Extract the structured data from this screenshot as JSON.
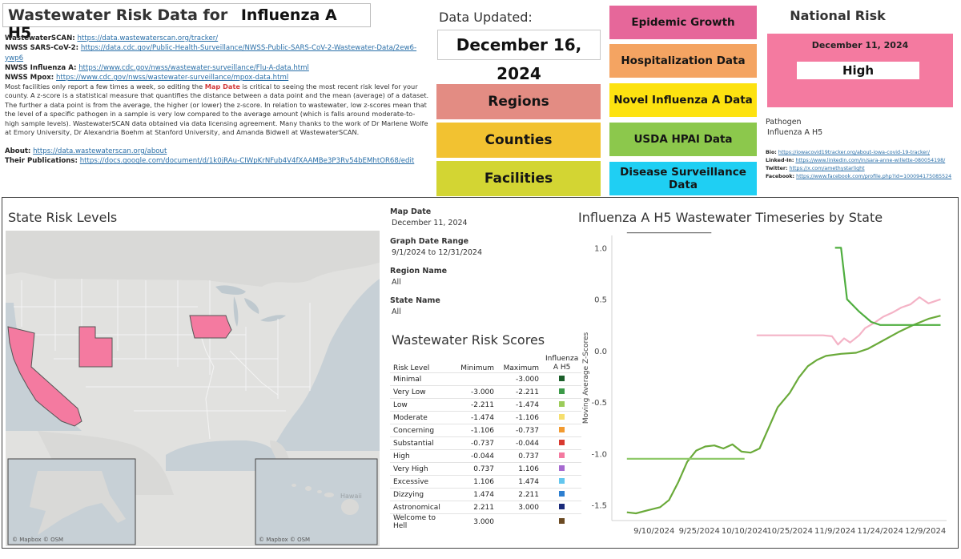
{
  "header": {
    "title_prefix": "Wastewater Risk Data for",
    "title_subject": "Influenza A H5"
  },
  "links": [
    {
      "label": "WastewaterSCAN:",
      "url": "https://data.wastewaterscan.org/tracker/"
    },
    {
      "label": "NWSS SARS-CoV-2:",
      "url": "https://data.cdc.gov/Public-Health-Surveillance/NWSS-Public-SARS-CoV-2-Wastewater-Data/2ew6-ywp6"
    },
    {
      "label": "NWSS Influenza A:",
      "url": "https://www.cdc.gov/nwss/wastewater-surveillance/Flu-A-data.html"
    },
    {
      "label": "NWSS Mpox:",
      "url": "https://www.cdc.gov/nwss/wastewater-surveillance/mpox-data.html"
    }
  ],
  "description": {
    "part1": "Most facilities only report a few times a week, so editing the ",
    "highlight": "Map Date",
    "part2": " is critical to seeing the most recent risk level for your county. A z-score is a statistical measure that quantifies the distance between a data point and the mean (average) of a dataset. The further a data point is from the average, the higher (or lower) the z-score. In relation to wastewater, low z-scores mean that the level of a specific pathogen in a sample is very low compared to the average amount (which is falls around moderate-to-high sample levels). WastewaterSCAN data obtained via data licensing agreement. Many thanks to the work of Dr Marlene Wolfe at Emory University, Dr Alexandria Boehm at Stanford University, and Amanda Bidwell at WastewaterSCAN."
  },
  "about": {
    "about_label": "About:",
    "about_url": "https://data.wastewaterscan.org/about",
    "pubs_label": "Their Publications:",
    "pubs_url": "https://docs.google.com/document/d/1k0jRAu-CIWpKrNFub4V4fXAAMBe3P3Rv54bEMhtOR68/edit"
  },
  "updated": {
    "label": "Data Updated:",
    "date": "December 16, 2024"
  },
  "nav": {
    "regions": "Regions",
    "counties": "Counties",
    "facilities": "Facilities",
    "epidemic": "Epidemic Growth",
    "hospitalization": "Hospitalization Data",
    "novel_flu": "Novel Influenza A Data",
    "usda": "USDA HPAI Data",
    "disease": "Disease Surveillance Data",
    "colors": {
      "regions": "#e38c83",
      "counties": "#f2c231",
      "facilities": "#d3d533",
      "epidemic": "#e6679a",
      "hospitalization": "#f4a462",
      "novel_flu": "#fde210",
      "usda": "#8cc84c",
      "disease": "#1fcff3"
    }
  },
  "national_risk": {
    "title": "National Risk",
    "date": "December 11, 2024",
    "level": "High",
    "color": "#f47aa0"
  },
  "pathogen": {
    "label": "Pathogen",
    "value": "Influenza A H5"
  },
  "contacts": [
    {
      "label": "Bio:",
      "url": "https://iowacovid19tracker.org/about-iowa-covid-19-tracker/"
    },
    {
      "label": "Linked-In:",
      "url": "https://www.linkedin.com/in/sara-anne-willette-080054198/"
    },
    {
      "label": "Twitter:",
      "url": "https://x.com/amethystarlight"
    },
    {
      "label": "Facebook:",
      "url": "https://www.facebook.com/profile.php?id=100094175085524"
    }
  ],
  "state_risk": {
    "title": "State Risk Levels",
    "highlight_color": "#f47aa0",
    "attribution": "© Mapbox © OSM",
    "inset_label": "Hawaii"
  },
  "filters": [
    {
      "label": "Map Date",
      "value": "December 11, 2024"
    },
    {
      "label": "Graph Date Range",
      "value": "9/1/2024 to 12/31/2024"
    },
    {
      "label": "Region Name",
      "value": "All"
    },
    {
      "label": "State Name",
      "value": "All"
    }
  ],
  "risk_scores": {
    "title": "Wastewater Risk Scores",
    "headers": [
      "Risk Level",
      "Minimum",
      "Maximum",
      "Influenza A H5"
    ],
    "rows": [
      {
        "level": "Minimal",
        "min": "",
        "max": "-3.000",
        "color": "#1b5e2a"
      },
      {
        "level": "Very Low",
        "min": "-3.000",
        "max": "-2.211",
        "color": "#3c9a48"
      },
      {
        "level": "Low",
        "min": "-2.211",
        "max": "-1.474",
        "color": "#9ccc5a"
      },
      {
        "level": "Moderate",
        "min": "-1.474",
        "max": "-1.106",
        "color": "#f6df6e"
      },
      {
        "level": "Concerning",
        "min": "-1.106",
        "max": "-0.737",
        "color": "#f29a30"
      },
      {
        "level": "Substantial",
        "min": "-0.737",
        "max": "-0.044",
        "color": "#d8392f"
      },
      {
        "level": "High",
        "min": "-0.044",
        "max": "0.737",
        "color": "#f47aa0"
      },
      {
        "level": "Very High",
        "min": "0.737",
        "max": "1.106",
        "color": "#a66ad0"
      },
      {
        "level": "Excessive",
        "min": "1.106",
        "max": "1.474",
        "color": "#63c6ee"
      },
      {
        "level": "Dizzying",
        "min": "1.474",
        "max": "2.211",
        "color": "#2e7fd0"
      },
      {
        "level": "Astronomical",
        "min": "2.211",
        "max": "3.000",
        "color": "#1a2a7a"
      },
      {
        "level": "Welcome to Hell",
        "min": "3.000",
        "max": "",
        "color": "#6b4a22"
      }
    ]
  },
  "chart_data": {
    "type": "line",
    "title": "Influenza A H5 Wastewater Timeseries by State",
    "xlabel": "",
    "ylabel": "Moving Average Z-Scores",
    "ylim": [
      -1.65,
      1.12
    ],
    "xlim": [
      "2024-08-27",
      "2024-12-16"
    ],
    "yticks": [
      1.0,
      0.5,
      0.0,
      -0.5,
      -1.0,
      -1.5
    ],
    "xticks": [
      "9/10/2024",
      "9/25/2024",
      "10/10/2024",
      "10/25/2024",
      "11/9/2024",
      "11/24/2024",
      "12/9/2024"
    ],
    "grid": false,
    "series": [
      {
        "color": "#6aaa3a",
        "values": [
          [
            "2024-09-01",
            -1.57
          ],
          [
            "2024-09-04",
            -1.58
          ],
          [
            "2024-09-08",
            -1.55
          ],
          [
            "2024-09-12",
            -1.52
          ],
          [
            "2024-09-15",
            -1.45
          ],
          [
            "2024-09-18",
            -1.28
          ],
          [
            "2024-09-21",
            -1.08
          ],
          [
            "2024-09-24",
            -0.97
          ],
          [
            "2024-09-27",
            -0.93
          ],
          [
            "2024-09-30",
            -0.92
          ],
          [
            "2024-10-03",
            -0.95
          ],
          [
            "2024-10-06",
            -0.91
          ],
          [
            "2024-10-09",
            -0.98
          ],
          [
            "2024-10-12",
            -0.99
          ],
          [
            "2024-10-15",
            -0.95
          ],
          [
            "2024-10-18",
            -0.75
          ],
          [
            "2024-10-21",
            -0.55
          ],
          [
            "2024-10-25",
            -0.41
          ],
          [
            "2024-10-28",
            -0.26
          ],
          [
            "2024-10-31",
            -0.15
          ],
          [
            "2024-11-03",
            -0.09
          ],
          [
            "2024-11-06",
            -0.05
          ],
          [
            "2024-11-11",
            -0.03
          ],
          [
            "2024-11-16",
            -0.02
          ],
          [
            "2024-11-20",
            0.02
          ],
          [
            "2024-11-25",
            0.1
          ],
          [
            "2024-11-30",
            0.18
          ],
          [
            "2024-12-05",
            0.25
          ],
          [
            "2024-12-10",
            0.31
          ],
          [
            "2024-12-14",
            0.34
          ]
        ]
      },
      {
        "color": "#8fc96a",
        "values": [
          [
            "2024-09-01",
            -1.05
          ],
          [
            "2024-10-10",
            -1.05
          ]
        ]
      },
      {
        "color": "#f4b3c6",
        "values": [
          [
            "2024-10-14",
            0.15
          ],
          [
            "2024-10-31",
            0.15
          ],
          [
            "2024-11-05",
            0.15
          ],
          [
            "2024-11-08",
            0.14
          ],
          [
            "2024-11-10",
            0.06
          ],
          [
            "2024-11-12",
            0.12
          ],
          [
            "2024-11-14",
            0.08
          ],
          [
            "2024-11-17",
            0.15
          ],
          [
            "2024-11-19",
            0.22
          ],
          [
            "2024-11-22",
            0.27
          ],
          [
            "2024-11-25",
            0.33
          ],
          [
            "2024-11-28",
            0.37
          ],
          [
            "2024-12-01",
            0.42
          ],
          [
            "2024-12-04",
            0.45
          ],
          [
            "2024-12-07",
            0.52
          ],
          [
            "2024-12-10",
            0.46
          ],
          [
            "2024-12-14",
            0.5
          ]
        ]
      },
      {
        "color": "#4fae3f",
        "values": [
          [
            "2024-11-09",
            1.0
          ],
          [
            "2024-11-11",
            1.0
          ],
          [
            "2024-11-13",
            0.5
          ],
          [
            "2024-11-17",
            0.38
          ],
          [
            "2024-11-21",
            0.28
          ],
          [
            "2024-11-24",
            0.25
          ],
          [
            "2024-12-14",
            0.25
          ]
        ]
      },
      {
        "color": "#777777",
        "values": [
          [
            "2024-09-01",
            1.15
          ],
          [
            "2024-09-29",
            1.15
          ]
        ]
      }
    ]
  }
}
